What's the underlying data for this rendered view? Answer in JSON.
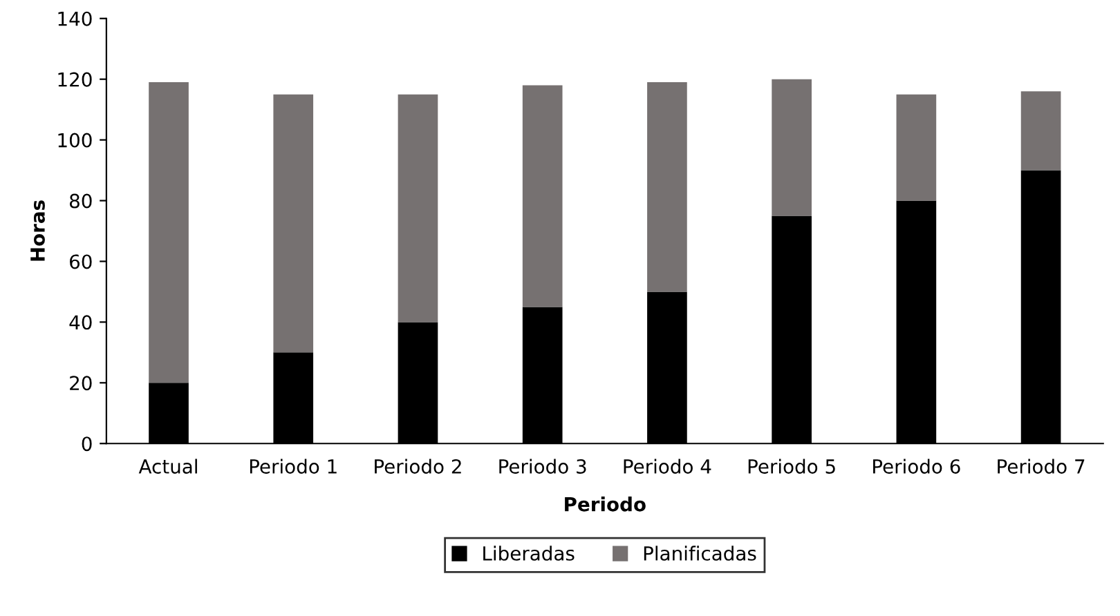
{
  "chart_data": {
    "type": "bar",
    "stacked": true,
    "xlabel": "Periodo",
    "ylabel": "Horas",
    "categories": [
      "Actual",
      "Periodo 1",
      "Periodo 2",
      "Periodo 3",
      "Periodo 4",
      "Periodo 5",
      "Periodo 6",
      "Periodo 7"
    ],
    "series": [
      {
        "name": "Liberadas",
        "color": "#000000",
        "values": [
          20,
          30,
          40,
          45,
          50,
          75,
          80,
          90
        ]
      },
      {
        "name": "Planificadas",
        "color": "#767171",
        "values": [
          99,
          85,
          75,
          73,
          69,
          45,
          35,
          26
        ]
      }
    ],
    "ylim": [
      0,
      140
    ],
    "yticks": [
      0,
      20,
      40,
      60,
      80,
      100,
      120,
      140
    ],
    "grid": false,
    "legend": "bottom"
  }
}
